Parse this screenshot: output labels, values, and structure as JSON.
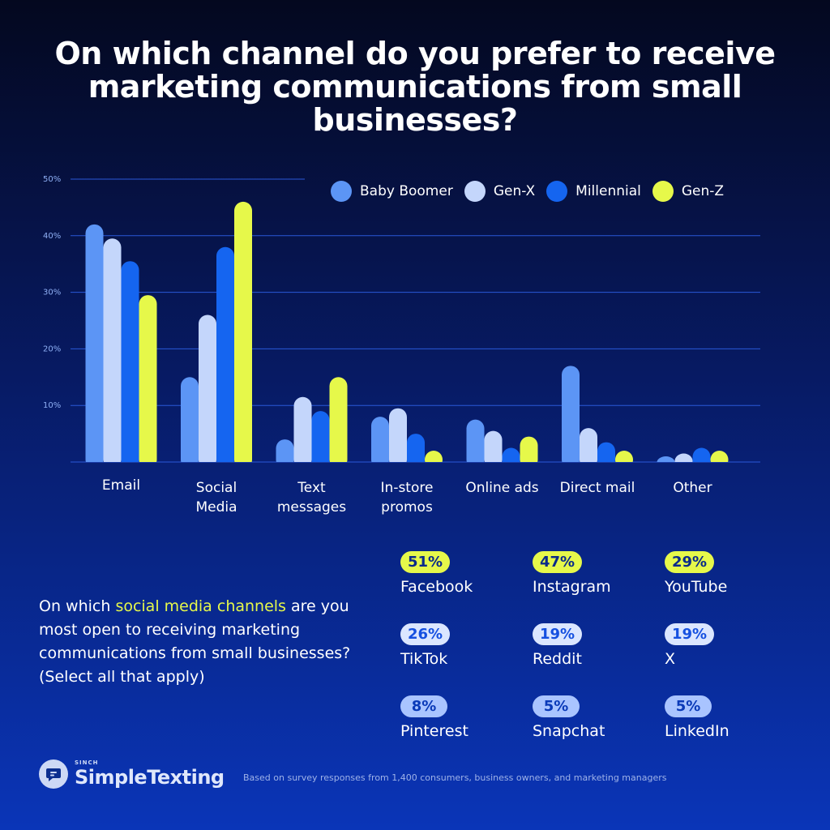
{
  "title": "On which channel do you prefer to receive marketing communications from small businesses?",
  "chart_data": {
    "type": "bar",
    "categories": [
      [
        "Email"
      ],
      [
        "Social",
        "Media"
      ],
      [
        "Text",
        "messages"
      ],
      [
        "In-store",
        "promos"
      ],
      [
        "Online ads"
      ],
      [
        "Direct mail"
      ],
      [
        "Other"
      ]
    ],
    "series": [
      {
        "name": "Baby Boomer",
        "color": "#5c95f5",
        "values": [
          42,
          15,
          4,
          8,
          7.5,
          17,
          1
        ]
      },
      {
        "name": "Gen-X",
        "color": "#c4d6fb",
        "values": [
          39.5,
          26,
          11.5,
          9.5,
          5.5,
          6,
          1.5
        ]
      },
      {
        "name": "Millennial",
        "color": "#1565f0",
        "values": [
          35.5,
          38,
          9,
          5,
          2.5,
          3.5,
          2.5
        ]
      },
      {
        "name": "Gen-Z",
        "color": "#e6f84a",
        "values": [
          29.5,
          46,
          15,
          2,
          4.5,
          2,
          2
        ]
      }
    ],
    "yticks": [
      "10%",
      "20%",
      "30%",
      "40%",
      "50%"
    ],
    "ylim": [
      0,
      50
    ],
    "grid": true,
    "legend": "top-right"
  },
  "social": {
    "question_prefix": "On which ",
    "question_highlight": "social media channels",
    "question_suffix": " are you most open to receiving marketing communications from small businesses? (Select all that apply)",
    "items": [
      {
        "pct": "51%",
        "name": "Facebook",
        "style": "hi"
      },
      {
        "pct": "47%",
        "name": "Instagram",
        "style": "hi"
      },
      {
        "pct": "29%",
        "name": "YouTube",
        "style": "hi"
      },
      {
        "pct": "26%",
        "name": "TikTok",
        "style": "mid"
      },
      {
        "pct": "19%",
        "name": "Reddit",
        "style": "mid"
      },
      {
        "pct": "19%",
        "name": "X",
        "style": "mid"
      },
      {
        "pct": "8%",
        "name": "Pinterest",
        "style": "lo"
      },
      {
        "pct": "5%",
        "name": "Snapchat",
        "style": "lo"
      },
      {
        "pct": "5%",
        "name": "LinkedIn",
        "style": "lo"
      }
    ]
  },
  "footer": {
    "logo_small": "SINCH",
    "logo_big": "SimpleTexting",
    "logo_icon": "chat-bubble-icon",
    "note": "Based on survey responses from 1,400 consumers, business owners, and marketing managers"
  }
}
